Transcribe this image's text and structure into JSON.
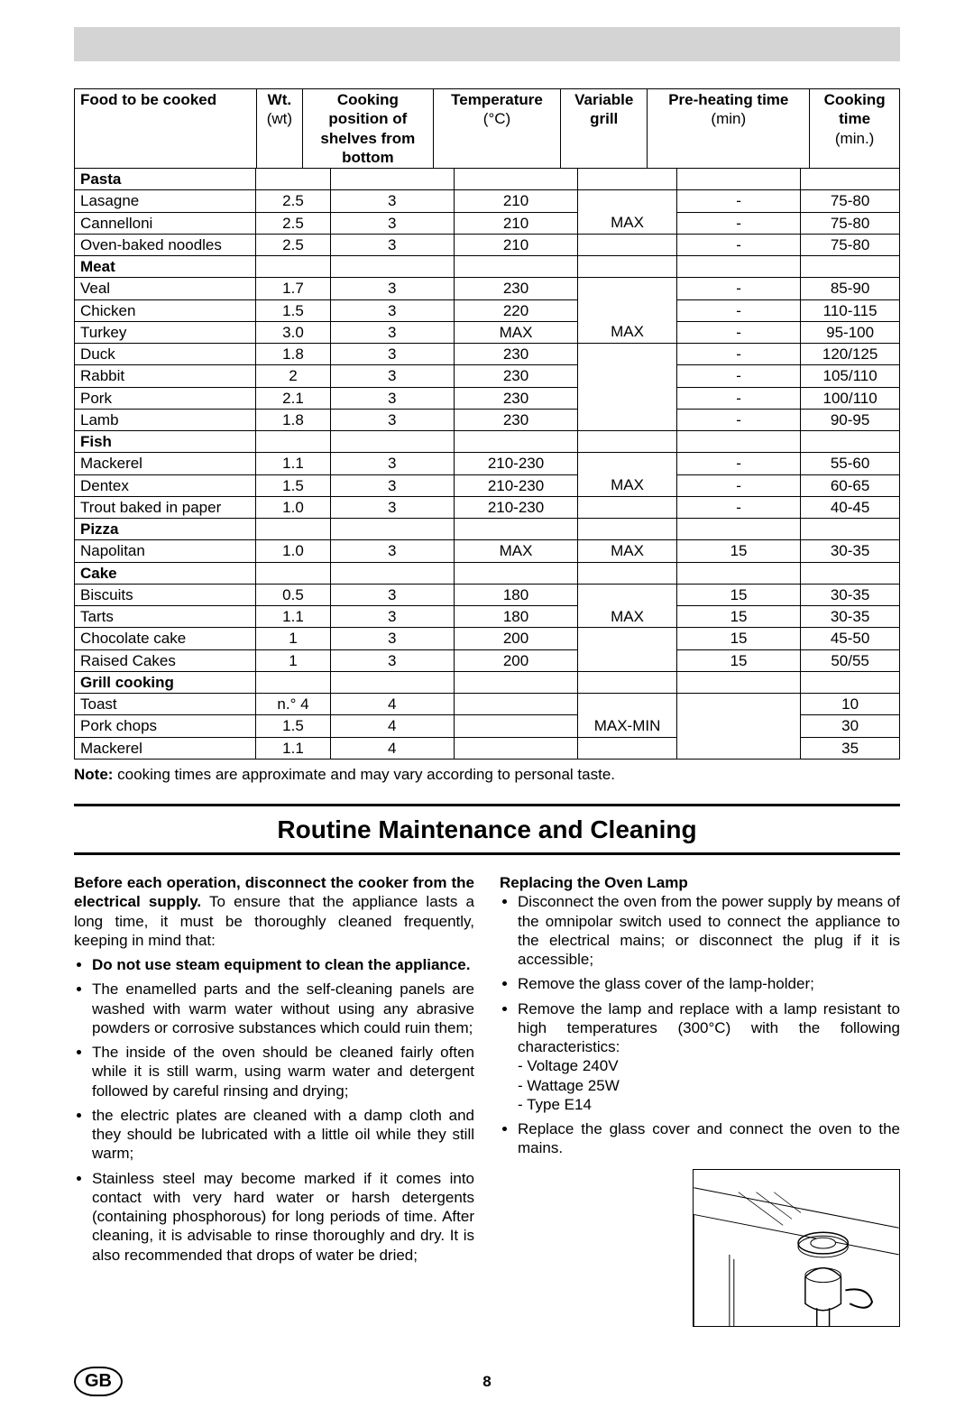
{
  "table": {
    "headers": {
      "food": "Food to be cooked",
      "wt": "Wt.",
      "wt_sub": "(wt)",
      "pos": "Cooking",
      "pos_sub1": "position of",
      "pos_sub2": "shelves from",
      "pos_sub3": "bottom",
      "temp": "Temperature",
      "temp_sub": "(°C)",
      "grill": "Variable",
      "grill_sub": "grill",
      "preheat": "Pre-heating time",
      "preheat_sub": "(min)",
      "time": "Cooking",
      "time_sub": "time",
      "time_sub2": "(min.)"
    },
    "sections": [
      {
        "name": "Pasta",
        "rows": [
          {
            "food": "Lasagne",
            "wt": "2.5",
            "pos": "3",
            "temp": "210",
            "grill": "",
            "pre": "-",
            "time": "75-80"
          },
          {
            "food": "Cannelloni",
            "wt": "2.5",
            "pos": "3",
            "temp": "210",
            "grill": "MAX",
            "pre": "-",
            "time": "75-80"
          },
          {
            "food": "Oven-baked noodles",
            "wt": "2.5",
            "pos": "3",
            "temp": "210",
            "grill": "",
            "pre": "-",
            "time": "75-80"
          }
        ]
      },
      {
        "name": "Meat",
        "rows": [
          {
            "food": "Veal",
            "wt": "1.7",
            "pos": "3",
            "temp": "230",
            "grill": "",
            "pre": "-",
            "time": "85-90"
          },
          {
            "food": "Chicken",
            "wt": "1.5",
            "pos": "3",
            "temp": "220",
            "grill": "",
            "pre": "-",
            "time": "110-115"
          },
          {
            "food": "Turkey",
            "wt": "3.0",
            "pos": "3",
            "temp": "MAX",
            "grill": "MAX",
            "pre": "-",
            "time": "95-100"
          },
          {
            "food": "Duck",
            "wt": "1.8",
            "pos": "3",
            "temp": "230",
            "grill": "",
            "pre": "-",
            "time": "120/125"
          },
          {
            "food": "Rabbit",
            "wt": "2",
            "pos": "3",
            "temp": "230",
            "grill": "",
            "pre": "-",
            "time": "105/110"
          },
          {
            "food": "Pork",
            "wt": "2.1",
            "pos": "3",
            "temp": "230",
            "grill": "",
            "pre": "-",
            "time": "100/110"
          },
          {
            "food": "Lamb",
            "wt": "1.8",
            "pos": "3",
            "temp": "230",
            "grill": "",
            "pre": "-",
            "time": "90-95"
          }
        ]
      },
      {
        "name": "Fish",
        "rows": [
          {
            "food": "Mackerel",
            "wt": "1.1",
            "pos": "3",
            "temp": "210-230",
            "grill": "",
            "pre": "-",
            "time": "55-60"
          },
          {
            "food": "Dentex",
            "wt": "1.5",
            "pos": "3",
            "temp": "210-230",
            "grill": "MAX",
            "pre": "-",
            "time": "60-65"
          },
          {
            "food": "Trout baked in paper",
            "wt": "1.0",
            "pos": "3",
            "temp": "210-230",
            "grill": "",
            "pre": "-",
            "time": "40-45"
          }
        ]
      },
      {
        "name": "Pizza",
        "rows": [
          {
            "food": "Napolitan",
            "wt": "1.0",
            "pos": "3",
            "temp": "MAX",
            "grill": "MAX",
            "pre": "15",
            "time": "30-35"
          }
        ]
      },
      {
        "name": "Cake",
        "rows": [
          {
            "food": "Biscuits",
            "wt": "0.5",
            "pos": "3",
            "temp": "180",
            "grill": "",
            "pre": "15",
            "time": "30-35"
          },
          {
            "food": "Tarts",
            "wt": "1.1",
            "pos": "3",
            "temp": "180",
            "grill": "MAX",
            "pre": "15",
            "time": "30-35"
          },
          {
            "food": "Chocolate cake",
            "wt": "1",
            "pos": "3",
            "temp": "200",
            "grill": "",
            "pre": "15",
            "time": "45-50"
          },
          {
            "food": "Raised Cakes",
            "wt": "1",
            "pos": "3",
            "temp": "200",
            "grill": "",
            "pre": "15",
            "time": "50/55"
          }
        ]
      },
      {
        "name": "Grill cooking",
        "rows": [
          {
            "food": "Toast",
            "wt": "n.° 4",
            "pos": "4",
            "temp": "",
            "grill": "",
            "pre": "",
            "time": "10"
          },
          {
            "food": "Pork chops",
            "wt": "1.5",
            "pos": "4",
            "temp": "",
            "grill": "MAX-MIN",
            "pre": "",
            "time": "30"
          },
          {
            "food": "Mackerel",
            "wt": "1.1",
            "pos": "4",
            "temp": "",
            "grill": "",
            "pre": "",
            "time": "35"
          }
        ]
      }
    ]
  },
  "note_label": "Note:",
  "note_text": " cooking times are approximate and may vary according to personal taste.",
  "section_title": "Routine Maintenance and Cleaning",
  "left": {
    "intro_bold": "Before each operation, disconnect the cooker from the electrical supply.",
    "intro_rest": " To ensure that the appliance lasts a long time, it must be thoroughly cleaned frequently, keeping in mind that:",
    "b1_bold": "Do not use steam equipment to clean the appliance.",
    "b2": "The enamelled parts and the self-cleaning panels are washed with warm water without using any abrasive powders or corrosive substances which could ruin them;",
    "b3": "The inside of the oven should be cleaned fairly often while it is still warm, using warm water and detergent followed by careful rinsing and drying;",
    "b4": "the electric plates are cleaned with a damp cloth and they should be lubricated with a little oil while they still warm;",
    "b5": "Stainless steel may become marked if it comes into contact with very hard water or harsh detergents (containing phosphorous) for long periods of time. After cleaning, it is advisable to rinse thoroughly and dry. It is also recommended that drops of water be dried;"
  },
  "right": {
    "heading": "Replacing the Oven Lamp",
    "r1": "Disconnect the oven from the power supply by means of the omnipolar switch used to connect the appliance to the electrical mains; or disconnect the plug if it is accessible;",
    "r2": "Remove the glass cover of the lamp-holder;",
    "r3": "Remove the lamp and replace with a lamp resistant to high temperatures (300°C) with the following characteristics:",
    "r3a": "- Voltage 240V",
    "r3b": "- Wattage 25W",
    "r3c": "- Type E14",
    "r4": "Replace the glass cover and connect the oven to the mains."
  },
  "footer": {
    "badge": "GB",
    "page": "8"
  }
}
